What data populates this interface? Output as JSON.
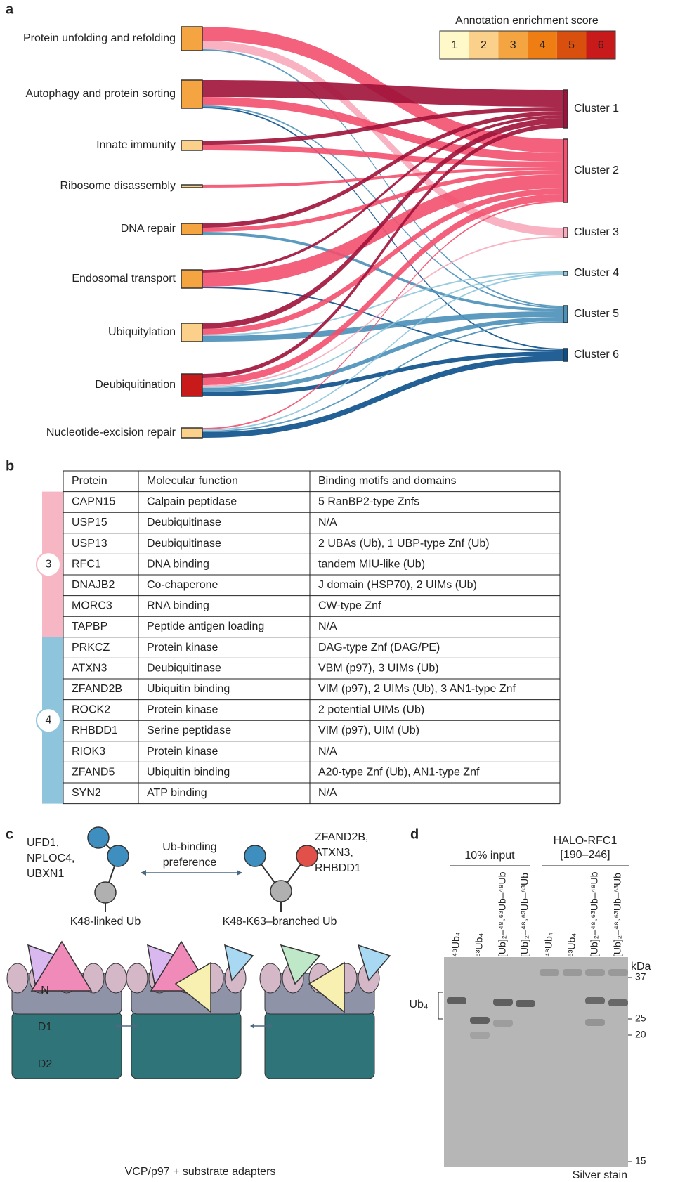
{
  "panel_a": {
    "label": "a",
    "legend_title": "Annotation enrichment score",
    "scores": [
      1,
      2,
      3,
      4,
      5,
      6
    ],
    "score_colors": [
      "#fff8c8",
      "#fbd08a",
      "#f5a442",
      "#ee7d14",
      "#d9500e",
      "#c81a1a"
    ],
    "sources": [
      {
        "name": "Protein unfolding and refolding",
        "score": 3
      },
      {
        "name": "Autophagy and protein sorting",
        "score": 3
      },
      {
        "name": "Innate immunity",
        "score": 2
      },
      {
        "name": "Ribosome disassembly",
        "score": 2
      },
      {
        "name": "DNA repair",
        "score": 3
      },
      {
        "name": "Endosomal transport",
        "score": 3
      },
      {
        "name": "Ubiquitylation",
        "score": 2
      },
      {
        "name": "Deubiquitination",
        "score": 6
      },
      {
        "name": "Nucleotide-excision repair",
        "score": 2
      }
    ],
    "targets": [
      {
        "name": "Cluster 1",
        "color": "#a0123a"
      },
      {
        "name": "Cluster 2",
        "color": "#f2506e"
      },
      {
        "name": "Cluster 3",
        "color": "#f7aabb"
      },
      {
        "name": "Cluster 4",
        "color": "#8ec5dc"
      },
      {
        "name": "Cluster 5",
        "color": "#4a90b8"
      },
      {
        "name": "Cluster 6",
        "color": "#0b4f8a"
      }
    ],
    "links": [
      {
        "source": 0,
        "target": 1,
        "value": 10
      },
      {
        "source": 0,
        "target": 2,
        "value": 6
      },
      {
        "source": 0,
        "target": 4,
        "value": 1
      },
      {
        "source": 1,
        "target": 0,
        "value": 12
      },
      {
        "source": 1,
        "target": 1,
        "value": 6
      },
      {
        "source": 1,
        "target": 4,
        "value": 1
      },
      {
        "source": 1,
        "target": 5,
        "value": 1
      },
      {
        "source": 2,
        "target": 0,
        "value": 3
      },
      {
        "source": 2,
        "target": 1,
        "value": 4
      },
      {
        "source": 3,
        "target": 1,
        "value": 2
      },
      {
        "source": 4,
        "target": 0,
        "value": 3
      },
      {
        "source": 4,
        "target": 1,
        "value": 3
      },
      {
        "source": 4,
        "target": 4,
        "value": 2
      },
      {
        "source": 5,
        "target": 0,
        "value": 2
      },
      {
        "source": 5,
        "target": 1,
        "value": 10
      },
      {
        "source": 5,
        "target": 5,
        "value": 1
      },
      {
        "source": 6,
        "target": 0,
        "value": 4
      },
      {
        "source": 6,
        "target": 1,
        "value": 4
      },
      {
        "source": 6,
        "target": 3,
        "value": 1
      },
      {
        "source": 6,
        "target": 4,
        "value": 4
      },
      {
        "source": 7,
        "target": 0,
        "value": 3
      },
      {
        "source": 7,
        "target": 1,
        "value": 5
      },
      {
        "source": 7,
        "target": 2,
        "value": 1
      },
      {
        "source": 7,
        "target": 3,
        "value": 1
      },
      {
        "source": 7,
        "target": 4,
        "value": 3
      },
      {
        "source": 7,
        "target": 5,
        "value": 3
      },
      {
        "source": 8,
        "target": 1,
        "value": 1
      },
      {
        "source": 8,
        "target": 3,
        "value": 1
      },
      {
        "source": 8,
        "target": 4,
        "value": 1
      },
      {
        "source": 8,
        "target": 5,
        "value": 4
      }
    ]
  },
  "panel_b": {
    "label": "b",
    "header": [
      "Protein",
      "Molecular function",
      "Binding motifs and domains"
    ],
    "groups": [
      {
        "label": "3",
        "color": "#f7b6c4",
        "rows": [
          [
            "CAPN15",
            "Calpain peptidase",
            "5 RanBP2-type Znfs"
          ],
          [
            "USP15",
            "Deubiquitinase",
            "N/A"
          ],
          [
            "USP13",
            "Deubiquitinase",
            "2 UBAs (Ub), 1 UBP-type Znf (Ub)"
          ],
          [
            "RFC1",
            "DNA binding",
            "tandem MIU-like (Ub)"
          ],
          [
            "DNAJB2",
            "Co-chaperone",
            "J domain (HSP70), 2 UIMs (Ub)"
          ],
          [
            "MORC3",
            "RNA binding",
            "CW-type Znf"
          ],
          [
            "TAPBP",
            "Peptide antigen loading",
            "N/A"
          ]
        ]
      },
      {
        "label": "4",
        "color": "#8ec5dc",
        "rows": [
          [
            "PRKCZ",
            "Protein kinase",
            "DAG-type Znf (DAG/PE)"
          ],
          [
            "ATXN3",
            "Deubiquitinase",
            "VBM (p97), 3 UIMs (Ub)"
          ],
          [
            "ZFAND2B",
            "Ubiquitin binding",
            "VIM (p97), 2 UIMs (Ub), 3 AN1-type Znf"
          ],
          [
            "ROCK2",
            "Protein kinase",
            "2 potential UIMs (Ub)"
          ],
          [
            "RHBDD1",
            "Serine peptidase",
            "VIM (p97), UIM (Ub)"
          ],
          [
            "RIOK3",
            "Protein kinase",
            "N/A"
          ],
          [
            "ZFAND5",
            "Ubiquitin binding",
            "A20-type Znf (Ub), AN1-type Znf"
          ],
          [
            "SYN2",
            "ATP binding",
            "N/A"
          ]
        ]
      }
    ]
  },
  "panel_c": {
    "label": "c",
    "left_adapters": [
      "UFD1,",
      "NPLOC4,",
      "UBXN1"
    ],
    "preference": [
      "Ub-binding",
      "preference"
    ],
    "right_adapters": [
      "ZFAND2B,",
      "ATXN3,",
      "RHBDD1"
    ],
    "left_chain": "K48-linked Ub",
    "right_chain": "K48-K63–branched Ub",
    "domains": [
      "N",
      "D1",
      "D2"
    ],
    "caption": "VCP/p97 + substrate adapters"
  },
  "panel_d": {
    "label": "d",
    "group_input": "10% input",
    "group_pulldown": [
      "HALO-RFC1",
      "[190–246]"
    ],
    "lanes": [
      "⁴⁸Ub₄",
      "⁶³Ub₄",
      "[Ub]₂–⁴⁸˒⁶³Ub–⁴⁸Ub",
      "[Ub]₂–⁴⁸˒⁶³Ub–⁶³Ub",
      "⁴⁸Ub₄",
      "⁶³Ub₄",
      "[Ub]₂–⁴⁸˒⁶³Ub–⁴⁸Ub",
      "[Ub]₂–⁴⁸˒⁶³Ub–⁶³Ub"
    ],
    "band_label": "Ub₄",
    "unit": "kDa",
    "markers": [
      "37",
      "25",
      "20",
      "15"
    ],
    "stain": "Silver stain"
  }
}
